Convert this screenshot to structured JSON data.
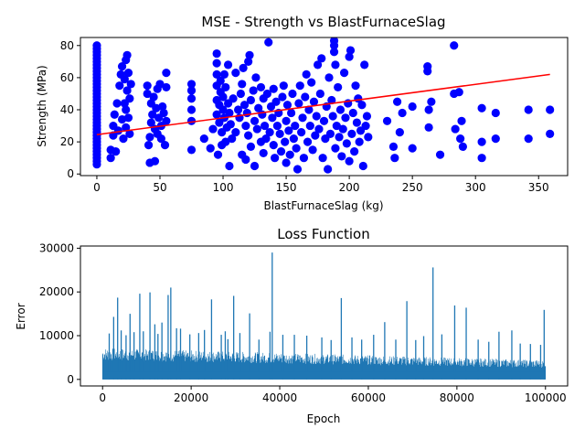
{
  "colors": {
    "scatter": "#0000ff",
    "fit_line": "#ff0000",
    "loss_line": "#1f77b4",
    "axes": "#000000",
    "background": "#ffffff"
  },
  "chart_data": [
    {
      "type": "scatter",
      "title": "MSE - Strength vs BlastFurnaceSlag",
      "xlabel": "BlastFurnaceSlag (kg)",
      "ylabel": "Strength (MPa)",
      "xlim": [
        -13,
        373
      ],
      "ylim": [
        -1,
        85
      ],
      "xticks": [
        0,
        50,
        100,
        150,
        200,
        250,
        300,
        350
      ],
      "yticks": [
        0,
        20,
        40,
        60,
        80
      ],
      "grid": false,
      "points": [
        [
          0,
          6
        ],
        [
          0,
          8
        ],
        [
          0,
          10
        ],
        [
          0,
          12
        ],
        [
          0,
          14
        ],
        [
          0,
          16
        ],
        [
          0,
          18
        ],
        [
          0,
          20
        ],
        [
          0,
          22
        ],
        [
          0,
          24
        ],
        [
          0,
          26
        ],
        [
          0,
          28
        ],
        [
          0,
          30
        ],
        [
          0,
          32
        ],
        [
          0,
          34
        ],
        [
          0,
          36
        ],
        [
          0,
          38
        ],
        [
          0,
          40
        ],
        [
          0,
          42
        ],
        [
          0,
          44
        ],
        [
          0,
          46
        ],
        [
          0,
          48
        ],
        [
          0,
          50
        ],
        [
          0,
          52
        ],
        [
          0,
          54
        ],
        [
          0,
          56
        ],
        [
          0,
          58
        ],
        [
          0,
          60
        ],
        [
          0,
          62
        ],
        [
          0,
          64
        ],
        [
          0,
          66
        ],
        [
          0,
          68
        ],
        [
          0,
          70
        ],
        [
          0,
          72
        ],
        [
          0,
          74
        ],
        [
          0,
          76
        ],
        [
          0,
          78
        ],
        [
          0,
          80
        ],
        [
          11,
          10
        ],
        [
          11,
          15
        ],
        [
          13,
          24
        ],
        [
          13,
          30
        ],
        [
          14,
          37
        ],
        [
          15,
          14
        ],
        [
          16,
          44
        ],
        [
          17,
          27
        ],
        [
          18,
          55
        ],
        [
          19,
          62
        ],
        [
          20,
          67
        ],
        [
          20,
          34
        ],
        [
          21,
          22
        ],
        [
          22,
          59
        ],
        [
          22,
          44
        ],
        [
          23,
          71
        ],
        [
          23,
          40
        ],
        [
          23,
          29
        ],
        [
          24,
          74
        ],
        [
          24,
          52
        ],
        [
          25,
          63
        ],
        [
          25,
          35
        ],
        [
          26,
          25
        ],
        [
          26,
          47
        ],
        [
          27,
          56
        ],
        [
          40,
          50
        ],
        [
          40,
          55
        ],
        [
          41,
          18
        ],
        [
          42,
          7
        ],
        [
          42,
          23
        ],
        [
          43,
          32
        ],
        [
          43,
          44
        ],
        [
          44,
          37
        ],
        [
          45,
          48
        ],
        [
          46,
          28
        ],
        [
          46,
          8
        ],
        [
          47,
          41
        ],
        [
          48,
          53
        ],
        [
          48,
          25
        ],
        [
          49,
          35
        ],
        [
          50,
          56
        ],
        [
          51,
          22
        ],
        [
          51,
          30
        ],
        [
          52,
          42
        ],
        [
          53,
          38
        ],
        [
          54,
          18
        ],
        [
          55,
          63
        ],
        [
          55,
          54
        ],
        [
          55,
          33
        ],
        [
          75,
          15
        ],
        [
          75,
          33
        ],
        [
          75,
          40
        ],
        [
          75,
          47
        ],
        [
          75,
          52
        ],
        [
          75,
          56
        ],
        [
          85,
          22
        ],
        [
          90,
          16
        ],
        [
          92,
          28
        ],
        [
          95,
          37
        ],
        [
          95,
          46
        ],
        [
          95,
          55
        ],
        [
          95,
          62
        ],
        [
          95,
          69
        ],
        [
          95,
          75
        ],
        [
          96,
          12
        ],
        [
          97,
          32
        ],
        [
          97,
          43
        ],
        [
          98,
          51
        ],
        [
          98,
          58
        ],
        [
          99,
          18
        ],
        [
          99,
          26
        ],
        [
          100,
          40
        ],
        [
          100,
          48
        ],
        [
          101,
          35
        ],
        [
          101,
          62
        ],
        [
          102,
          20
        ],
        [
          102,
          54
        ],
        [
          103,
          29
        ],
        [
          104,
          44
        ],
        [
          104,
          68
        ],
        [
          105,
          5
        ],
        [
          105,
          38
        ],
        [
          106,
          31
        ],
        [
          107,
          22
        ],
        [
          108,
          47
        ],
        [
          110,
          63
        ],
        [
          110,
          26
        ],
        [
          112,
          40
        ],
        [
          113,
          35
        ],
        [
          114,
          50
        ],
        [
          115,
          12
        ],
        [
          115,
          56
        ],
        [
          116,
          66
        ],
        [
          117,
          43
        ],
        [
          118,
          9
        ],
        [
          118,
          30
        ],
        [
          119,
          38
        ],
        [
          120,
          70
        ],
        [
          120,
          24
        ],
        [
          121,
          74
        ],
        [
          122,
          46
        ],
        [
          122,
          17
        ],
        [
          124,
          52
        ],
        [
          125,
          33
        ],
        [
          125,
          5
        ],
        [
          126,
          60
        ],
        [
          127,
          28
        ],
        [
          128,
          41
        ],
        [
          130,
          20
        ],
        [
          130,
          54
        ],
        [
          131,
          37
        ],
        [
          132,
          13
        ],
        [
          132,
          47
        ],
        [
          133,
          30
        ],
        [
          134,
          22
        ],
        [
          135,
          50
        ],
        [
          136,
          82
        ],
        [
          137,
          26
        ],
        [
          138,
          42
        ],
        [
          139,
          35
        ],
        [
          140,
          18
        ],
        [
          140,
          53
        ],
        [
          141,
          10
        ],
        [
          142,
          45
        ],
        [
          143,
          30
        ],
        [
          144,
          38
        ],
        [
          145,
          25
        ],
        [
          146,
          14
        ],
        [
          147,
          48
        ],
        [
          148,
          55
        ],
        [
          149,
          20
        ],
        [
          150,
          33
        ],
        [
          150,
          7
        ],
        [
          151,
          43
        ],
        [
          152,
          27
        ],
        [
          153,
          12
        ],
        [
          154,
          38
        ],
        [
          155,
          50
        ],
        [
          156,
          22
        ],
        [
          157,
          30
        ],
        [
          158,
          16
        ],
        [
          159,
          3
        ],
        [
          160,
          44
        ],
        [
          161,
          55
        ],
        [
          162,
          26
        ],
        [
          163,
          35
        ],
        [
          164,
          10
        ],
        [
          165,
          48
        ],
        [
          166,
          62
        ],
        [
          167,
          20
        ],
        [
          168,
          40
        ],
        [
          169,
          30
        ],
        [
          170,
          57
        ],
        [
          171,
          15
        ],
        [
          172,
          45
        ],
        [
          173,
          24
        ],
        [
          174,
          36
        ],
        [
          175,
          68
        ],
        [
          176,
          28
        ],
        [
          177,
          50
        ],
        [
          178,
          72
        ],
        [
          179,
          10
        ],
        [
          180,
          33
        ],
        [
          181,
          22
        ],
        [
          182,
          42
        ],
        [
          183,
          3
        ],
        [
          184,
          60
        ],
        [
          185,
          25
        ],
        [
          186,
          46
        ],
        [
          187,
          36
        ],
        [
          188,
          83
        ],
        [
          188,
          80
        ],
        [
          188,
          76
        ],
        [
          189,
          16
        ],
        [
          189,
          68
        ],
        [
          190,
          30
        ],
        [
          191,
          54
        ],
        [
          192,
          23
        ],
        [
          193,
          40
        ],
        [
          194,
          11
        ],
        [
          195,
          28
        ],
        [
          196,
          63
        ],
        [
          197,
          35
        ],
        [
          198,
          19
        ],
        [
          199,
          44
        ],
        [
          200,
          8
        ],
        [
          200,
          73
        ],
        [
          201,
          77
        ],
        [
          202,
          25
        ],
        [
          203,
          38
        ],
        [
          204,
          14
        ],
        [
          205,
          55
        ],
        [
          206,
          32
        ],
        [
          207,
          47
        ],
        [
          208,
          20
        ],
        [
          209,
          27
        ],
        [
          210,
          43
        ],
        [
          211,
          5
        ],
        [
          212,
          68
        ],
        [
          213,
          30
        ],
        [
          214,
          36
        ],
        [
          215,
          23
        ],
        [
          230,
          33
        ],
        [
          235,
          17
        ],
        [
          236,
          10
        ],
        [
          238,
          45
        ],
        [
          240,
          26
        ],
        [
          242,
          38
        ],
        [
          250,
          16
        ],
        [
          250,
          42
        ],
        [
          262,
          64
        ],
        [
          262,
          67
        ],
        [
          263,
          40
        ],
        [
          263,
          29
        ],
        [
          265,
          45
        ],
        [
          272,
          12
        ],
        [
          283,
          80
        ],
        [
          283,
          50
        ],
        [
          284,
          28
        ],
        [
          287,
          51
        ],
        [
          288,
          22
        ],
        [
          289,
          33
        ],
        [
          290,
          17
        ],
        [
          305,
          10
        ],
        [
          305,
          20
        ],
        [
          305,
          41
        ],
        [
          316,
          22
        ],
        [
          316,
          38
        ],
        [
          342,
          22
        ],
        [
          342,
          40
        ],
        [
          359,
          25
        ],
        [
          359,
          40
        ]
      ],
      "fit_line": {
        "x": [
          0,
          359
        ],
        "y": [
          24.5,
          62
        ]
      }
    },
    {
      "type": "line",
      "title": "Loss Function",
      "xlabel": "Epoch",
      "ylabel": "Error",
      "xlim": [
        -5000,
        105000
      ],
      "ylim": [
        -1500,
        30500
      ],
      "xticks": [
        0,
        20000,
        40000,
        60000,
        80000,
        100000
      ],
      "yticks": [
        0,
        10000,
        20000,
        30000
      ],
      "grid": false,
      "epochs": 100000,
      "spikes": [
        [
          1500,
          10500
        ],
        [
          2500,
          14300
        ],
        [
          3400,
          18700
        ],
        [
          4200,
          11200
        ],
        [
          5300,
          10100
        ],
        [
          6200,
          15000
        ],
        [
          7100,
          10800
        ],
        [
          8400,
          19600
        ],
        [
          9200,
          11000
        ],
        [
          10700,
          19900
        ],
        [
          11800,
          12600
        ],
        [
          12500,
          10400
        ],
        [
          13400,
          13000
        ],
        [
          14800,
          19300
        ],
        [
          15400,
          21000
        ],
        [
          16700,
          11700
        ],
        [
          17600,
          11600
        ],
        [
          19700,
          10300
        ],
        [
          21700,
          10600
        ],
        [
          23000,
          11300
        ],
        [
          24600,
          18300
        ],
        [
          26800,
          10200
        ],
        [
          27700,
          11000
        ],
        [
          28300,
          9200
        ],
        [
          29600,
          19100
        ],
        [
          31000,
          10600
        ],
        [
          33200,
          15100
        ],
        [
          35300,
          9100
        ],
        [
          37800,
          10900
        ],
        [
          38300,
          29000
        ],
        [
          40700,
          10200
        ],
        [
          43300,
          10200
        ],
        [
          46100,
          10000
        ],
        [
          49500,
          9600
        ],
        [
          51600,
          9000
        ],
        [
          53900,
          18600
        ],
        [
          56300,
          9600
        ],
        [
          58500,
          9100
        ],
        [
          61200,
          10200
        ],
        [
          63700,
          13100
        ],
        [
          66200,
          9100
        ],
        [
          68700,
          17900
        ],
        [
          70700,
          9000
        ],
        [
          72500,
          9900
        ],
        [
          74600,
          25600
        ],
        [
          76600,
          10300
        ],
        [
          79500,
          16900
        ],
        [
          82100,
          16400
        ],
        [
          84800,
          9100
        ],
        [
          87200,
          8600
        ],
        [
          89500,
          10900
        ],
        [
          92400,
          11200
        ],
        [
          94300,
          8200
        ],
        [
          96600,
          8100
        ],
        [
          98900,
          7900
        ],
        [
          99700,
          15900
        ]
      ]
    }
  ]
}
